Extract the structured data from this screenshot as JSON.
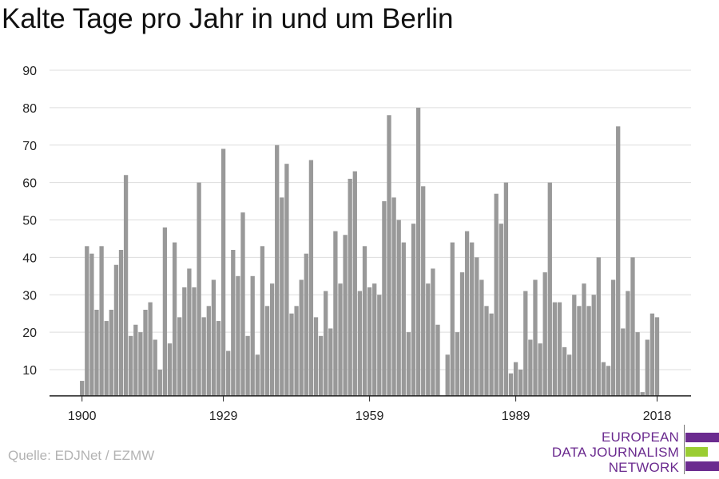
{
  "chart_data": {
    "type": "bar",
    "title": "Kalte Tage pro Jahr in und um Berlin",
    "xlabel": "",
    "ylabel": "",
    "ylim": [
      3,
      90
    ],
    "yticks": [
      10,
      20,
      30,
      40,
      50,
      60,
      70,
      80,
      90
    ],
    "xticks": [
      1900,
      1929,
      1959,
      1989,
      2018
    ],
    "grid": true,
    "bar_color": "#999999",
    "x": [
      1900,
      1901,
      1902,
      1903,
      1904,
      1905,
      1906,
      1907,
      1908,
      1909,
      1910,
      1911,
      1912,
      1913,
      1914,
      1915,
      1916,
      1917,
      1918,
      1919,
      1920,
      1921,
      1922,
      1923,
      1924,
      1925,
      1926,
      1927,
      1928,
      1929,
      1930,
      1931,
      1932,
      1933,
      1934,
      1935,
      1936,
      1937,
      1938,
      1939,
      1940,
      1941,
      1942,
      1943,
      1944,
      1945,
      1946,
      1947,
      1948,
      1949,
      1950,
      1951,
      1952,
      1953,
      1954,
      1955,
      1956,
      1957,
      1958,
      1959,
      1960,
      1961,
      1962,
      1963,
      1964,
      1965,
      1966,
      1967,
      1968,
      1969,
      1970,
      1971,
      1972,
      1973,
      1974,
      1975,
      1976,
      1977,
      1978,
      1979,
      1980,
      1981,
      1982,
      1983,
      1984,
      1985,
      1986,
      1987,
      1988,
      1989,
      1990,
      1991,
      1992,
      1993,
      1994,
      1995,
      1996,
      1997,
      1998,
      1999,
      2000,
      2001,
      2002,
      2003,
      2004,
      2005,
      2006,
      2007,
      2008,
      2009,
      2010,
      2011,
      2012,
      2013,
      2014,
      2015,
      2016,
      2017,
      2018
    ],
    "values": [
      7,
      43,
      41,
      26,
      43,
      23,
      26,
      38,
      42,
      62,
      19,
      22,
      20,
      26,
      28,
      18,
      10,
      48,
      17,
      44,
      24,
      32,
      37,
      32,
      60,
      24,
      27,
      34,
      23,
      69,
      15,
      42,
      35,
      52,
      19,
      35,
      14,
      43,
      27,
      33,
      70,
      56,
      65,
      25,
      27,
      34,
      41,
      66,
      24,
      19,
      31,
      21,
      47,
      33,
      46,
      61,
      63,
      31,
      43,
      32,
      33,
      30,
      55,
      78,
      56,
      50,
      44,
      20,
      49,
      80,
      59,
      33,
      37,
      22,
      3,
      14,
      44,
      20,
      36,
      47,
      44,
      40,
      34,
      27,
      25,
      57,
      49,
      60,
      9,
      12,
      10,
      31,
      18,
      34,
      17,
      36,
      60,
      28,
      28,
      16,
      14,
      30,
      27,
      33,
      27,
      30,
      40,
      12,
      11,
      34,
      75,
      21,
      31,
      40,
      20,
      4,
      18,
      25,
      24
    ]
  },
  "source": "Quelle: EDJNet / EZMW",
  "logo": {
    "line1": "EUROPEAN",
    "line2": "DATA JOURNALISM",
    "line3": "NETWORK",
    "purple": "#6b2b8f",
    "green": "#9acd32"
  }
}
